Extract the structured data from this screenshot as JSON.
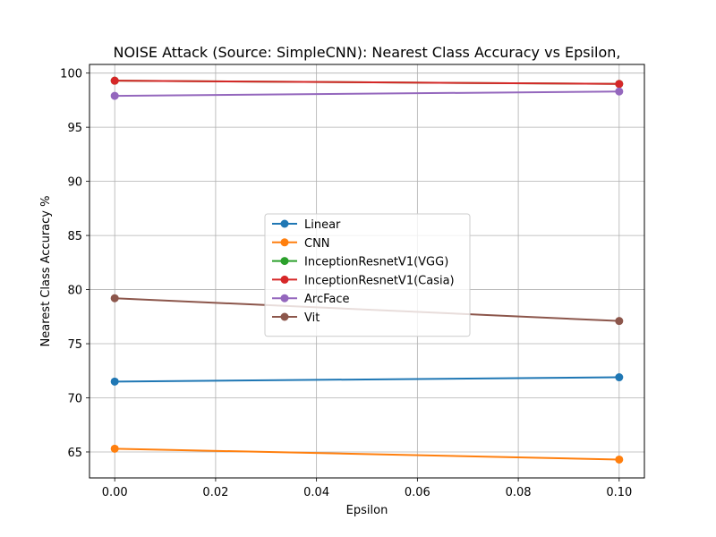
{
  "chart_data": {
    "type": "line",
    "title": "NOISE Attack (Source: SimpleCNN): Nearest Class Accuracy vs Epsilon,",
    "xlabel": "Epsilon",
    "ylabel": "Nearest Class Accuracy %",
    "xlim": [
      -0.005,
      0.105
    ],
    "ylim": [
      62.6,
      100.8
    ],
    "xticks": [
      0.0,
      0.02,
      0.04,
      0.06,
      0.08,
      0.1
    ],
    "xtick_labels": [
      "0.00",
      "0.02",
      "0.04",
      "0.06",
      "0.08",
      "0.10"
    ],
    "yticks": [
      65,
      70,
      75,
      80,
      85,
      90,
      95,
      100
    ],
    "ytick_labels": [
      "65",
      "70",
      "75",
      "80",
      "85",
      "90",
      "95",
      "100"
    ],
    "grid": true,
    "legend_position": "center",
    "x": [
      0.0,
      0.1
    ],
    "series": [
      {
        "name": "Linear",
        "color": "#1f77b4",
        "values": [
          71.5,
          71.9
        ]
      },
      {
        "name": "CNN",
        "color": "#ff7f0e",
        "values": [
          65.3,
          64.3
        ]
      },
      {
        "name": "InceptionResnetV1(VGG)",
        "color": "#2ca02c",
        "values": [
          99.3,
          99.0
        ]
      },
      {
        "name": "InceptionResnetV1(Casia)",
        "color": "#d62728",
        "values": [
          99.3,
          99.0
        ]
      },
      {
        "name": "ArcFace",
        "color": "#9467bd",
        "values": [
          97.9,
          98.3
        ]
      },
      {
        "name": "Vit",
        "color": "#8c564b",
        "values": [
          79.2,
          77.1
        ]
      }
    ]
  }
}
